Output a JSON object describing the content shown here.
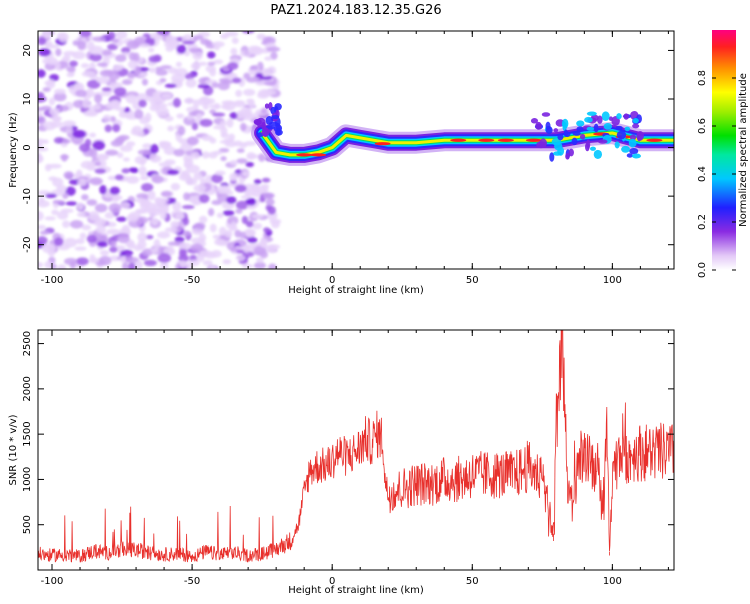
{
  "figure_title": "PAZ1.2024.183.12.35.G26",
  "chart_data": [
    {
      "type": "heatmap",
      "title": "PAZ1.2024.183.12.35.G26",
      "xlabel": "Height of straight line (km)",
      "ylabel": "Frequency (Hz)",
      "xlim": [
        -105,
        122
      ],
      "ylim": [
        -25,
        24
      ],
      "xticks": [
        -100,
        -50,
        0,
        50,
        100
      ],
      "yticks": [
        -20,
        -10,
        0,
        10,
        20
      ],
      "colorbar": {
        "label": "Normalized spectral amplitude",
        "range": [
          0,
          1
        ],
        "ticks": [
          0.0,
          0.2,
          0.4,
          0.6,
          0.8
        ],
        "colormap": "rainbow (white-violet-blue-cyan-green-yellow-red-magenta)"
      },
      "regions": [
        {
          "description": "noise speckle",
          "x": [
            -105,
            -20
          ],
          "frequency": [
            -25,
            24
          ],
          "amplitude_approx": 0.15
        },
        {
          "description": "signal trace",
          "x": [
            -25,
            122
          ],
          "frequency": [
            -2,
            3
          ],
          "amplitude_approx": 0.8
        }
      ],
      "signal_trace": [
        {
          "x": -25,
          "freq": 3
        },
        {
          "x": -20,
          "freq": -1
        },
        {
          "x": -15,
          "freq": -1.5
        },
        {
          "x": -10,
          "freq": -1.5
        },
        {
          "x": -5,
          "freq": -1
        },
        {
          "x": 0,
          "freq": 0
        },
        {
          "x": 5,
          "freq": 2.5
        },
        {
          "x": 10,
          "freq": 2
        },
        {
          "x": 15,
          "freq": 1.5
        },
        {
          "x": 20,
          "freq": 1
        },
        {
          "x": 30,
          "freq": 1
        },
        {
          "x": 40,
          "freq": 1.5
        },
        {
          "x": 50,
          "freq": 1.5
        },
        {
          "x": 60,
          "freq": 1.5
        },
        {
          "x": 70,
          "freq": 1.5
        },
        {
          "x": 80,
          "freq": 1.5
        },
        {
          "x": 90,
          "freq": 2.5
        },
        {
          "x": 100,
          "freq": 3
        },
        {
          "x": 110,
          "freq": 1.5
        },
        {
          "x": 122,
          "freq": 1.5
        }
      ],
      "grid": false
    },
    {
      "type": "line",
      "xlabel": "Height of straight line (km)",
      "ylabel": "SNR (10 * v/v)",
      "xlim": [
        -105,
        122
      ],
      "ylim": [
        0,
        2650
      ],
      "xticks": [
        -100,
        -50,
        0,
        50,
        100
      ],
      "yticks": [
        500,
        1000,
        1500,
        2000,
        2500
      ],
      "color": "#e8302c",
      "series": [
        {
          "x": [
            -105,
            -100,
            -95,
            -90,
            -85,
            -80,
            -75,
            -70,
            -65,
            -60,
            -55,
            -50,
            -45,
            -40,
            -35,
            -30,
            -25,
            -20,
            -15,
            -12,
            -10,
            -8,
            -5,
            -2,
            0,
            2,
            5,
            8,
            10,
            12,
            14,
            16,
            18,
            19,
            20,
            25,
            30,
            35,
            40,
            45,
            50,
            55,
            60,
            65,
            68,
            70,
            75,
            77,
            79,
            80,
            82,
            84,
            86,
            88,
            90,
            92,
            95,
            97,
            98,
            99,
            100,
            102,
            104,
            106,
            108,
            110,
            115,
            122
          ],
          "y": [
            180,
            160,
            170,
            150,
            210,
            190,
            230,
            220,
            190,
            170,
            180,
            150,
            200,
            170,
            190,
            160,
            180,
            230,
            320,
            500,
            850,
            1100,
            1150,
            1150,
            1200,
            1300,
            1250,
            1300,
            1350,
            1450,
            1400,
            1500,
            1450,
            950,
            850,
            900,
            950,
            950,
            1000,
            1000,
            1050,
            1050,
            1050,
            1050,
            1100,
            1150,
            1000,
            700,
            400,
            1600,
            2650,
            900,
            700,
            1200,
            1300,
            1200,
            1100,
            600,
            1800,
            200,
            1000,
            1200,
            1300,
            1250,
            1300,
            1300,
            1300,
            1300
          ]
        }
      ],
      "grid": false
    }
  ]
}
